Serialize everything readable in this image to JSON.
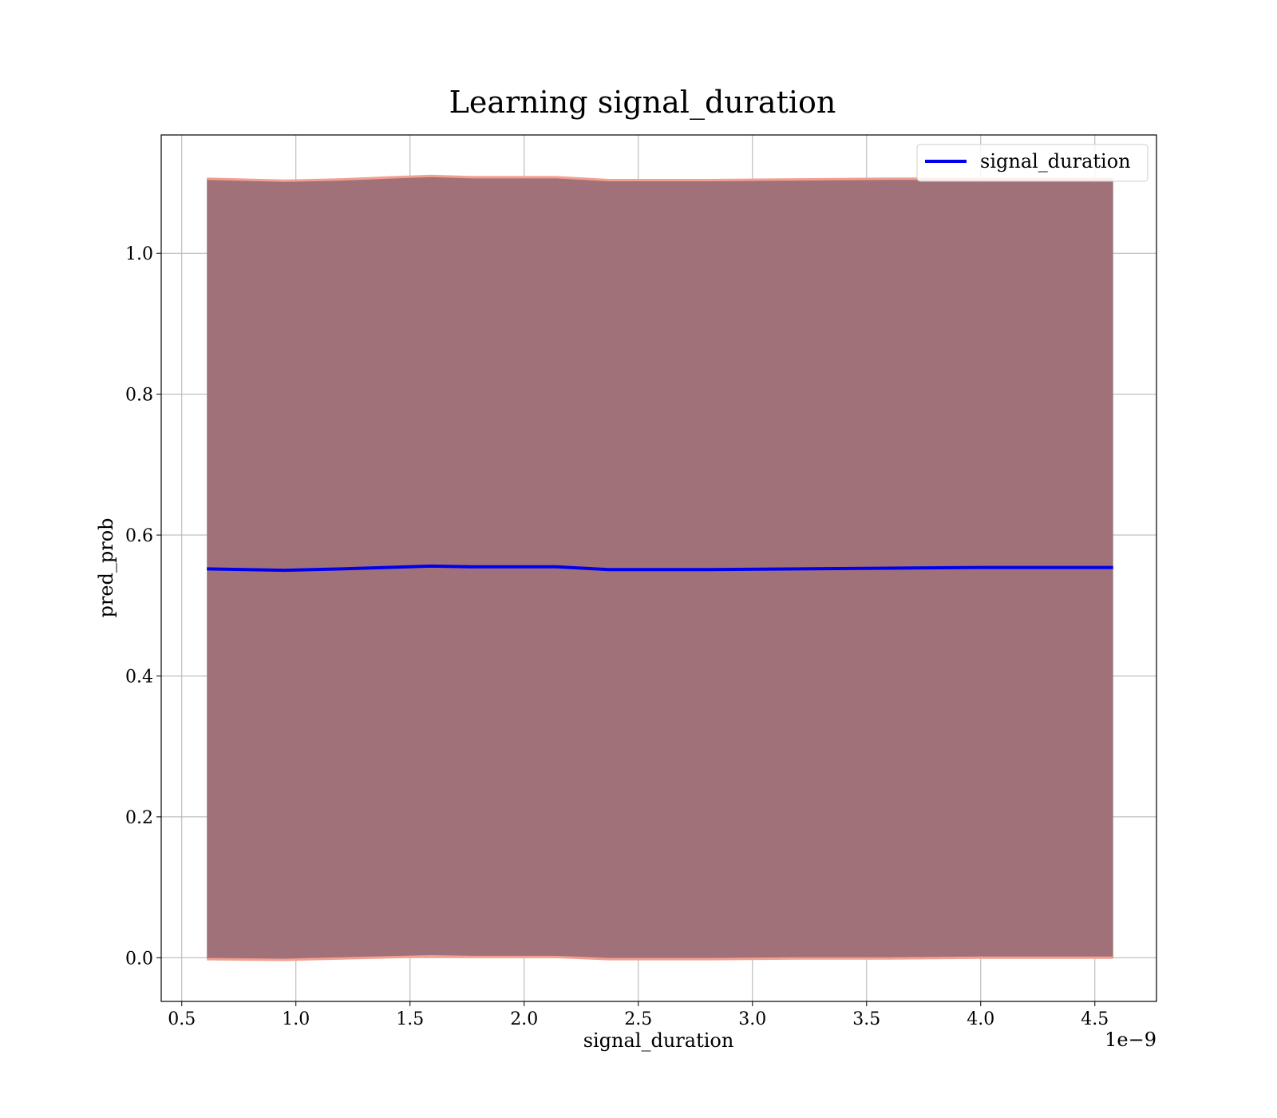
{
  "chart_data": {
    "type": "line",
    "title": "Learning signal_duration",
    "xlabel": "signal_duration",
    "ylabel": "pred_prob",
    "x_offset_text": "1e−9",
    "x_ticks": [
      {
        "value": 0.5,
        "label": "0.5"
      },
      {
        "value": 1.0,
        "label": "1.0"
      },
      {
        "value": 1.5,
        "label": "1.5"
      },
      {
        "value": 2.0,
        "label": "2.0"
      },
      {
        "value": 2.5,
        "label": "2.5"
      },
      {
        "value": 3.0,
        "label": "3.0"
      },
      {
        "value": 3.5,
        "label": "3.5"
      },
      {
        "value": 4.0,
        "label": "4.0"
      },
      {
        "value": 4.5,
        "label": "4.5"
      }
    ],
    "y_ticks": [
      {
        "value": 0.0,
        "label": "0.0"
      },
      {
        "value": 0.2,
        "label": "0.2"
      },
      {
        "value": 0.4,
        "label": "0.4"
      },
      {
        "value": 0.6,
        "label": "0.6"
      },
      {
        "value": 0.8,
        "label": "0.8"
      },
      {
        "value": 1.0,
        "label": "1.0"
      }
    ],
    "xlim": [
      0.41,
      4.77
    ],
    "ylim": [
      -0.062,
      1.168
    ],
    "grid": true,
    "legend_position": "top-right",
    "series": [
      {
        "name": "signal_duration",
        "color": "#0000ee",
        "x": [
          0.61,
          0.95,
          1.2,
          1.59,
          1.77,
          2.14,
          2.37,
          2.8,
          3.2,
          3.6,
          4.0,
          4.58
        ],
        "y": [
          0.552,
          0.55,
          0.552,
          0.556,
          0.555,
          0.555,
          0.551,
          0.551,
          0.552,
          0.553,
          0.554,
          0.554
        ],
        "band_upper": [
          1.106,
          1.103,
          1.105,
          1.11,
          1.108,
          1.108,
          1.104,
          1.104,
          1.105,
          1.106,
          1.106,
          1.106
        ],
        "band_lower": [
          -0.002,
          -0.003,
          -0.001,
          0.002,
          0.001,
          0.001,
          -0.002,
          -0.002,
          -0.001,
          -0.001,
          0.0,
          0.0
        ],
        "band_fill_color": "#a1717a",
        "band_edge_color": "#f4a090"
      }
    ]
  }
}
